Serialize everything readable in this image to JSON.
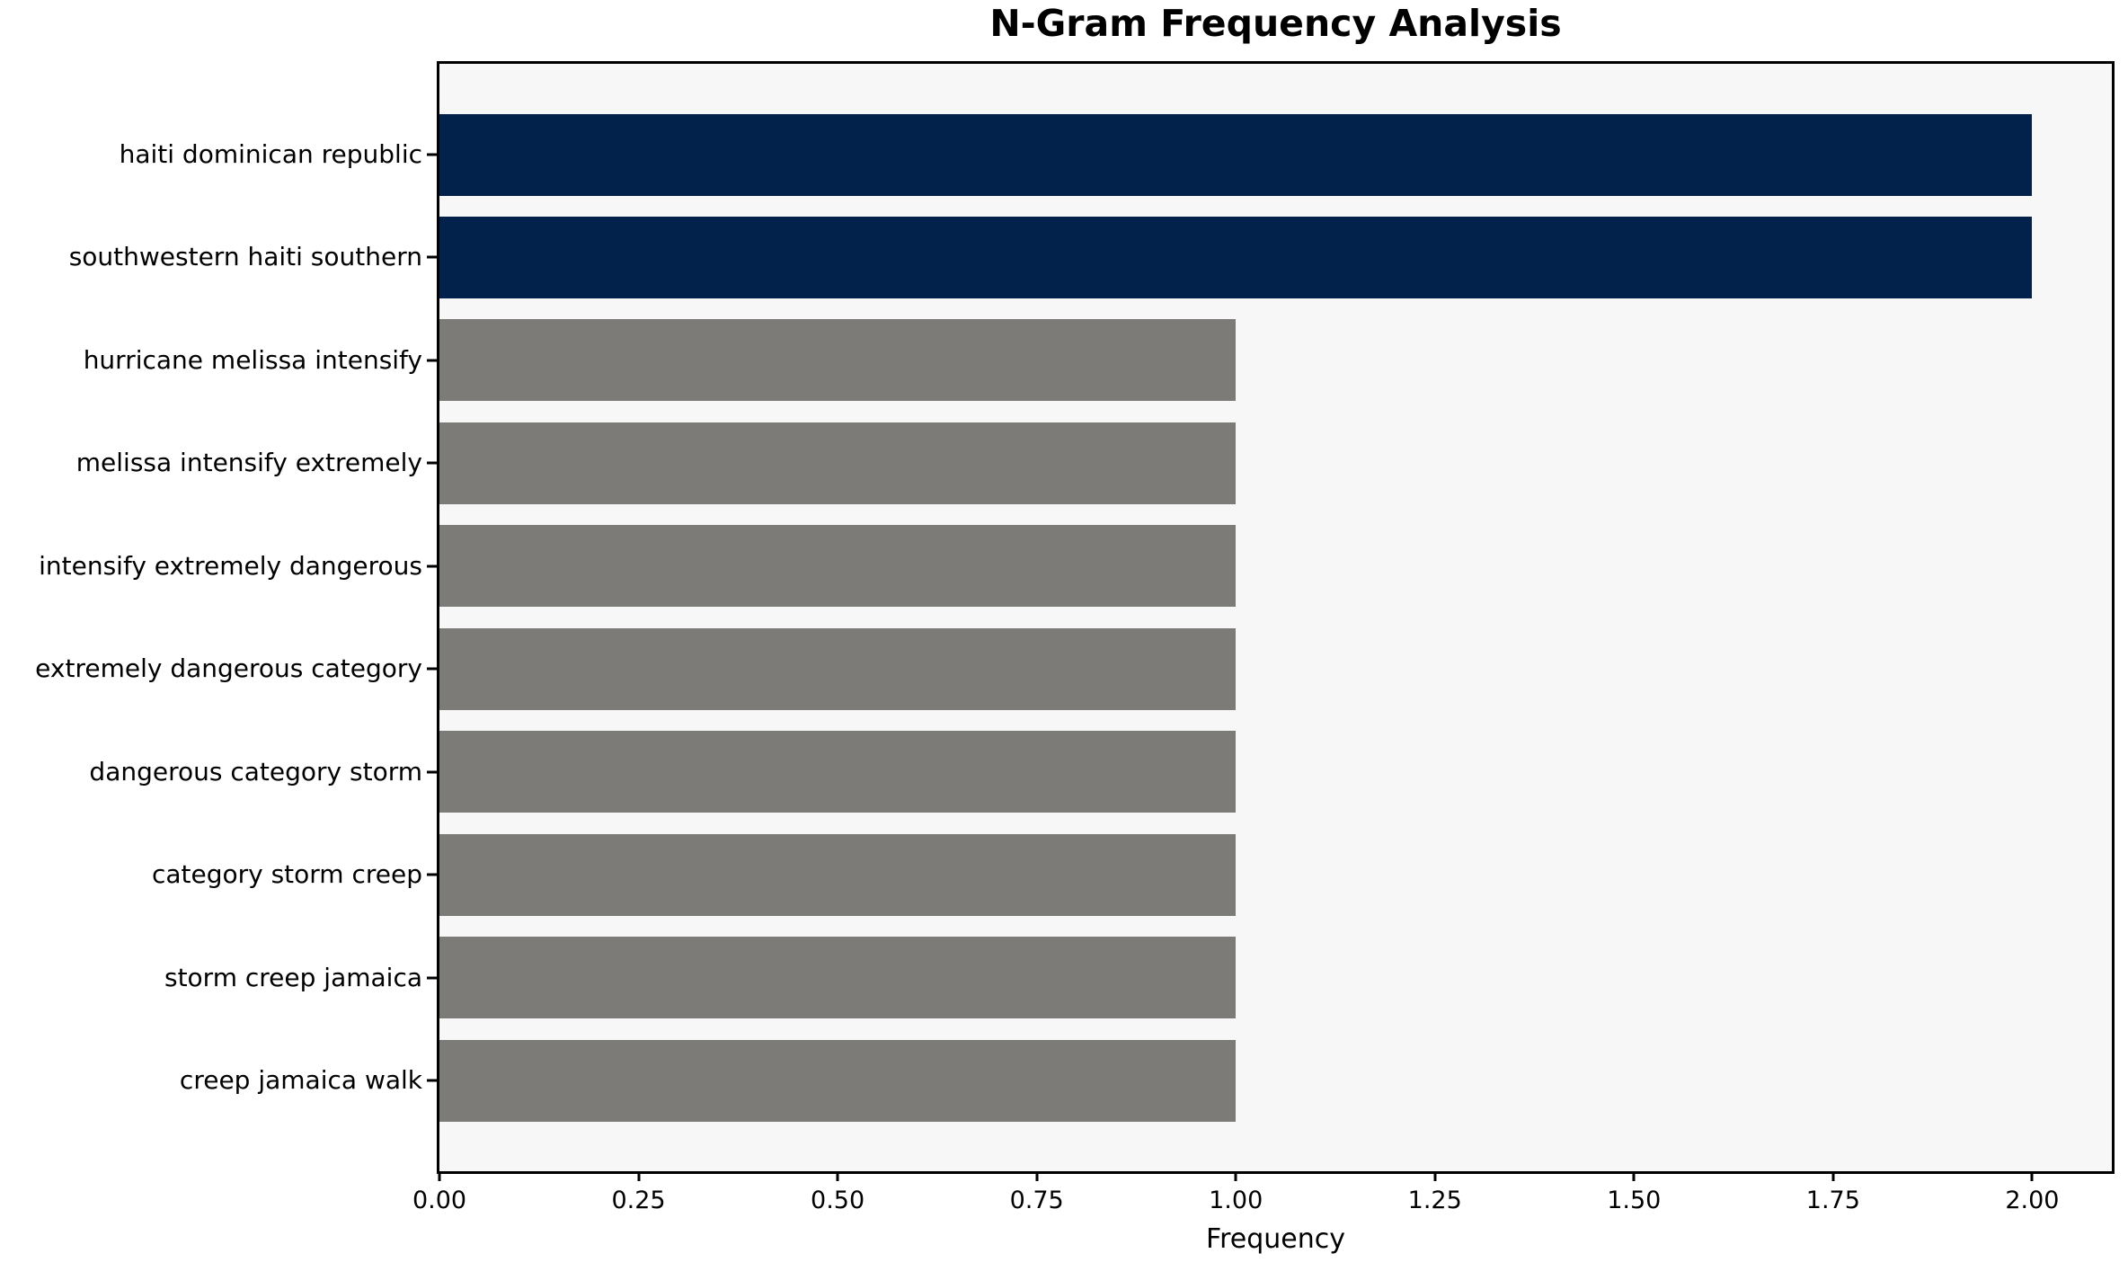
{
  "chart_data": {
    "type": "bar",
    "orientation": "horizontal",
    "title": "N-Gram Frequency Analysis",
    "xlabel": "Frequency",
    "ylabel": "",
    "categories": [
      "haiti dominican republic",
      "southwestern haiti southern",
      "hurricane melissa intensify",
      "melissa intensify extremely",
      "intensify extremely dangerous",
      "extremely dangerous category",
      "dangerous category storm",
      "category storm creep",
      "storm creep jamaica",
      "creep jamaica walk"
    ],
    "values": [
      2,
      2,
      1,
      1,
      1,
      1,
      1,
      1,
      1,
      1
    ],
    "bar_colors": [
      "#02224b",
      "#02224b",
      "#7c7b77",
      "#7c7b77",
      "#7c7b77",
      "#7c7b77",
      "#7c7b77",
      "#7c7b77",
      "#7c7b77",
      "#7c7b77"
    ],
    "xlim": [
      0,
      2.1
    ],
    "xticks": [
      {
        "label": "0.00",
        "value": 0.0
      },
      {
        "label": "0.25",
        "value": 0.25
      },
      {
        "label": "0.50",
        "value": 0.5
      },
      {
        "label": "0.75",
        "value": 0.75
      },
      {
        "label": "1.00",
        "value": 1.0
      },
      {
        "label": "1.25",
        "value": 1.25
      },
      {
        "label": "1.50",
        "value": 1.5
      },
      {
        "label": "1.75",
        "value": 1.75
      },
      {
        "label": "2.00",
        "value": 2.0
      }
    ],
    "grid": false,
    "legend": null,
    "colors": {
      "highlight_bar": "#02224b",
      "default_bar": "#7c7b77",
      "plot_background": "#f7f7f8",
      "page_background": "#ffffff",
      "axis": "#000000"
    }
  }
}
